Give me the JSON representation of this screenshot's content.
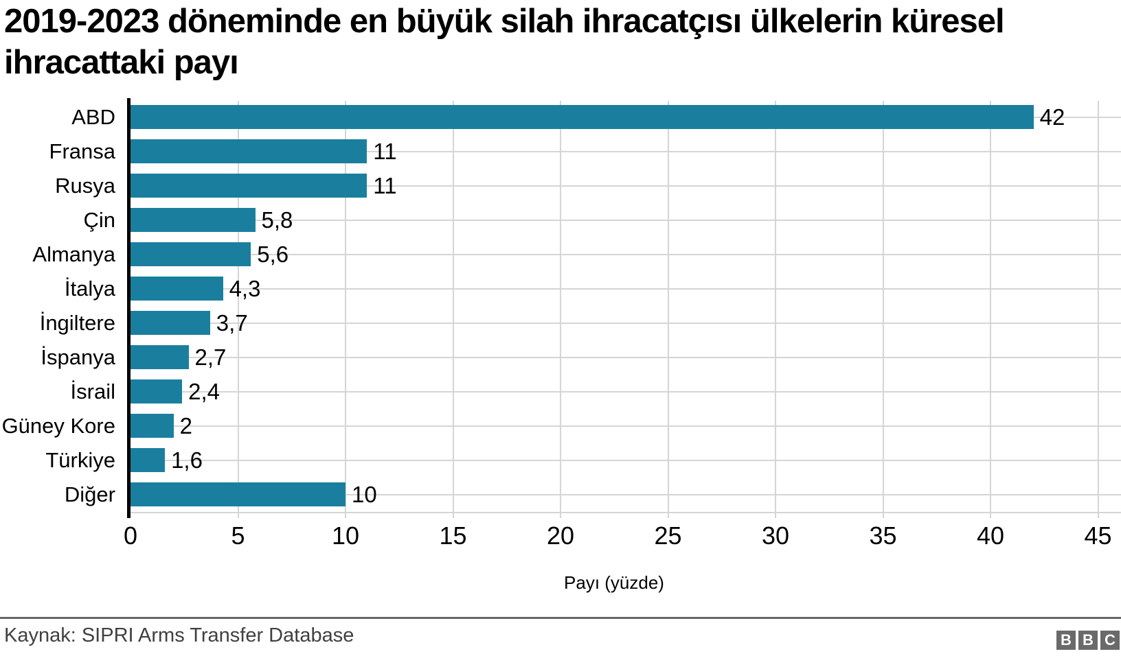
{
  "title": {
    "line1": "2019-2023 döneminde en büyük silah ihracatçısı ülkelerin küresel",
    "line2": "ihracattaki payı"
  },
  "chart_data": {
    "type": "bar",
    "orientation": "horizontal",
    "categories": [
      "ABD",
      "Fransa",
      "Rusya",
      "Çin",
      "Almanya",
      "İtalya",
      "İngiltere",
      "İspanya",
      "İsrail",
      "Güney Kore",
      "Türkiye",
      "Diğer"
    ],
    "values": [
      42,
      11,
      11,
      5.8,
      5.6,
      4.3,
      3.7,
      2.7,
      2.4,
      2,
      1.6,
      10
    ],
    "value_labels": [
      "42",
      "11",
      "11",
      "5,8",
      "5,6",
      "4,3",
      "3,7",
      "2,7",
      "2,4",
      "2",
      "1,6",
      "10"
    ],
    "title": "2019-2023 döneminde en büyük silah ihracatçısı ülkelerin küresel ihracattaki payı",
    "xlabel": "Payı (yüzde)",
    "ylabel": "",
    "xlim": [
      0,
      45
    ],
    "xticks": [
      "0",
      "5",
      "10",
      "15",
      "20",
      "25",
      "30",
      "35",
      "40",
      "45"
    ],
    "grid": true,
    "legend": false
  },
  "footer": {
    "source": "Kaynak: SIPRI Arms Transfer Database",
    "logo_letters": [
      "B",
      "B",
      "C"
    ]
  },
  "colors": {
    "bar": "#1a7f9e",
    "grid": "#d5d5d5",
    "axis": "#000000",
    "divider": "#666666",
    "bbc_gray": "#6a6a6a",
    "source_text": "#404040"
  }
}
